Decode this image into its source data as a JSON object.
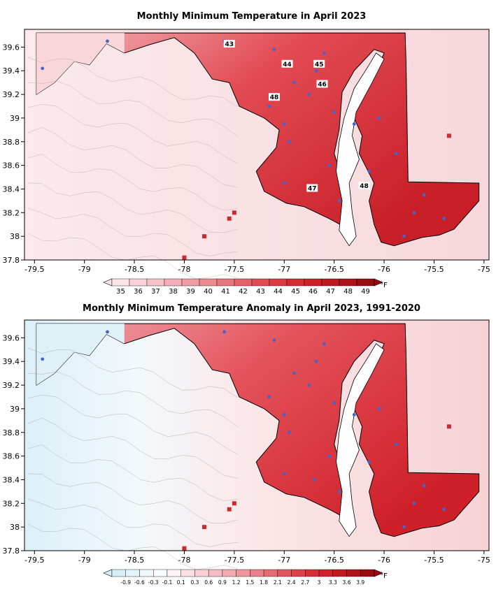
{
  "maps": [
    {
      "title": "Monthly Minimum Temperature in April 2023",
      "x_ticks": [
        "-79.5",
        "-79",
        "-78.5",
        "-78",
        "-77.5",
        "-77",
        "-76.5",
        "-76",
        "-75.5",
        "-75"
      ],
      "y_ticks": [
        "39.6",
        "39.4",
        "39.2",
        "39",
        "38.8",
        "38.6",
        "38.4",
        "38.2",
        "38",
        "37.8"
      ],
      "colorbar": {
        "labels": [
          "35",
          "36",
          "37",
          "38",
          "39",
          "40",
          "41",
          "42",
          "43",
          "44",
          "45",
          "46",
          "47",
          "48",
          "49"
        ],
        "unit": "°F",
        "colors": [
          "#fbe3e6",
          "#f8d3d7",
          "#f5c2c7",
          "#f2b0b6",
          "#ef9ea5",
          "#ec8a92",
          "#e8767e",
          "#e5626a",
          "#e04c55",
          "#dc3a43",
          "#d62a33",
          "#cc1f28",
          "#bd1820",
          "#ab1319",
          "#960d12"
        ]
      },
      "contour_labels": [
        "43",
        "44",
        "45",
        "46",
        "48",
        "47",
        "48"
      ]
    },
    {
      "title": "Monthly Minimum Temperature Anomaly in April 2023, 1991-2020",
      "x_ticks": [
        "-79.5",
        "-79",
        "-78.5",
        "-78",
        "-77.5",
        "-77",
        "-76.5",
        "-76",
        "-75.5",
        "-75"
      ],
      "y_ticks": [
        "39.6",
        "39.4",
        "39.2",
        "39",
        "38.8",
        "38.6",
        "38.4",
        "38.2",
        "38",
        "37.8"
      ],
      "colorbar": {
        "labels": [
          "-0.9",
          "-0.6",
          "-0.3",
          "-0.1",
          "0.1",
          "0.3",
          "0.6",
          "0.9",
          "1.2",
          "1.5",
          "1.8",
          "2.1",
          "2.4",
          "2.7",
          "3",
          "3.3",
          "3.6",
          "3.9"
        ],
        "unit": "°F",
        "colors": [
          "#d6eef8",
          "#e3f3fa",
          "#eef8fc",
          "#f7fbfd",
          "#fdf3f4",
          "#fbe1e4",
          "#f8cfd3",
          "#f5bdc2",
          "#f2a9b0",
          "#ee959d",
          "#ea8089",
          "#e66b74",
          "#e2555f",
          "#dd414b",
          "#d72f39",
          "#cf222b",
          "#c21920",
          "#af1218",
          "#990d12"
        ]
      }
    }
  ]
}
